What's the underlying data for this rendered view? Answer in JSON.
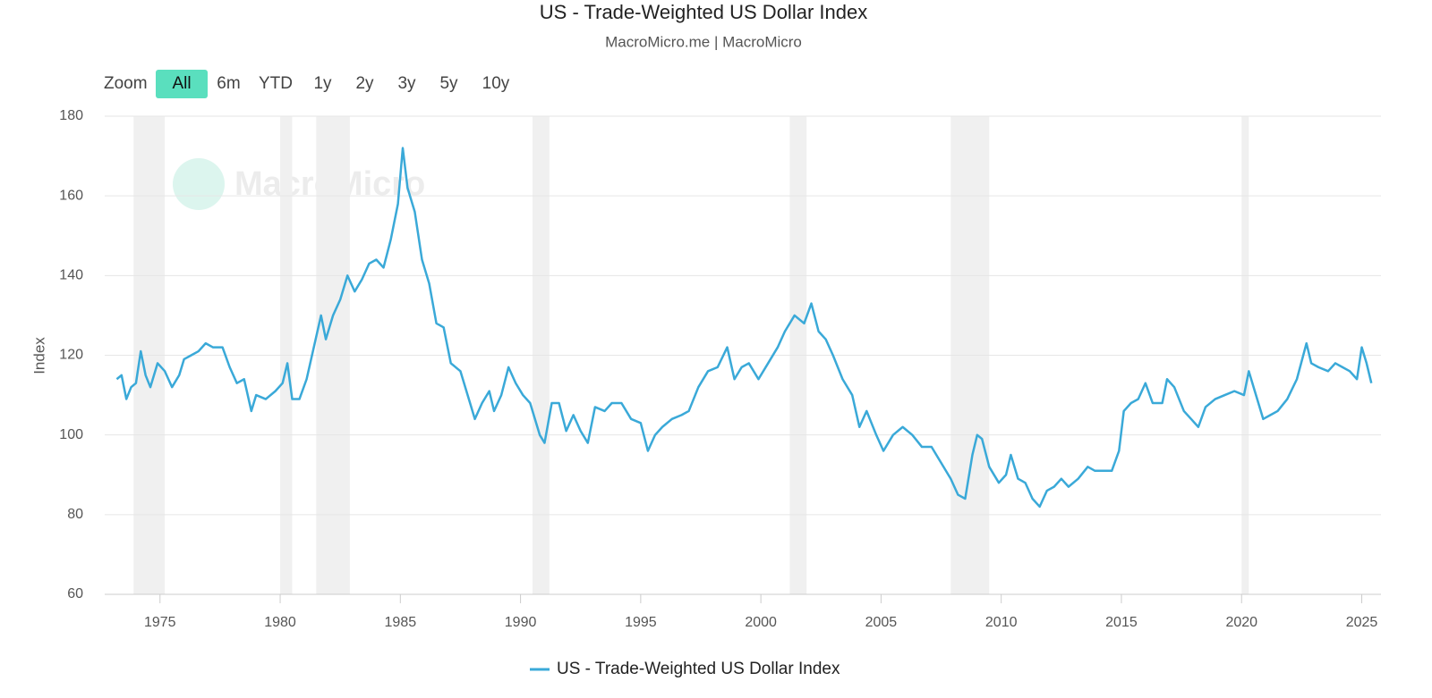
{
  "chart_data": {
    "type": "line",
    "title": "US - Trade-Weighted US Dollar Index",
    "subtitle": "MacroMicro.me | MacroMicro",
    "watermark": "MacroMicro",
    "zoom_label": "Zoom",
    "zoom_buttons": [
      "All",
      "6m",
      "YTD",
      "1y",
      "2y",
      "3y",
      "5y",
      "10y"
    ],
    "zoom_active": "All",
    "y_label": "Index",
    "xlim": [
      1972.7,
      2025.8
    ],
    "xticks": [
      1975,
      1980,
      1985,
      1990,
      1995,
      2000,
      2005,
      2010,
      2015,
      2020,
      2025
    ],
    "ylim": [
      60,
      180
    ],
    "yticks": [
      60,
      80,
      100,
      120,
      140,
      160,
      180
    ],
    "grid": true,
    "shaded_color": "#f0f0f0",
    "shaded_regions": [
      [
        1973.9,
        1975.2
      ],
      [
        1980.0,
        1980.5
      ],
      [
        1981.5,
        1982.9
      ],
      [
        1990.5,
        1991.2
      ],
      [
        2001.2,
        2001.9
      ],
      [
        2007.9,
        2009.5
      ],
      [
        2020.0,
        2020.3
      ]
    ],
    "series": [
      {
        "name": "US - Trade-Weighted US Dollar Index",
        "color": "#3aa9d8",
        "x": [
          1973.2,
          1973.4,
          1973.6,
          1973.8,
          1974.0,
          1974.2,
          1974.4,
          1974.6,
          1974.9,
          1975.2,
          1975.5,
          1975.8,
          1976.0,
          1976.3,
          1976.6,
          1976.9,
          1977.2,
          1977.6,
          1977.9,
          1978.2,
          1978.5,
          1978.8,
          1979.0,
          1979.4,
          1979.8,
          1980.1,
          1980.3,
          1980.5,
          1980.8,
          1981.1,
          1981.4,
          1981.7,
          1981.9,
          1982.2,
          1982.5,
          1982.8,
          1983.1,
          1983.4,
          1983.7,
          1984.0,
          1984.3,
          1984.6,
          1984.9,
          1985.1,
          1985.3,
          1985.6,
          1985.9,
          1986.2,
          1986.5,
          1986.8,
          1987.1,
          1987.5,
          1987.9,
          1988.1,
          1988.4,
          1988.7,
          1988.9,
          1989.2,
          1989.5,
          1989.8,
          1990.1,
          1990.4,
          1990.8,
          1991.0,
          1991.3,
          1991.6,
          1991.9,
          1992.2,
          1992.5,
          1992.8,
          1993.1,
          1993.5,
          1993.8,
          1994.2,
          1994.6,
          1995.0,
          1995.3,
          1995.6,
          1995.9,
          1996.3,
          1996.7,
          1997.0,
          1997.4,
          1997.8,
          1998.2,
          1998.6,
          1998.9,
          1999.2,
          1999.5,
          1999.9,
          2000.3,
          2000.7,
          2001.0,
          2001.4,
          2001.8,
          2002.1,
          2002.4,
          2002.7,
          2003.0,
          2003.4,
          2003.8,
          2004.1,
          2004.4,
          2004.8,
          2005.1,
          2005.5,
          2005.9,
          2006.3,
          2006.7,
          2007.1,
          2007.5,
          2007.9,
          2008.2,
          2008.5,
          2008.8,
          2009.0,
          2009.2,
          2009.5,
          2009.9,
          2010.2,
          2010.4,
          2010.7,
          2011.0,
          2011.3,
          2011.6,
          2011.9,
          2012.2,
          2012.5,
          2012.8,
          2013.2,
          2013.6,
          2013.9,
          2014.3,
          2014.6,
          2014.9,
          2015.1,
          2015.4,
          2015.7,
          2016.0,
          2016.3,
          2016.7,
          2016.9,
          2017.2,
          2017.6,
          2017.9,
          2018.2,
          2018.5,
          2018.9,
          2019.3,
          2019.7,
          2020.1,
          2020.3,
          2020.6,
          2020.9,
          2021.2,
          2021.5,
          2021.9,
          2022.3,
          2022.7,
          2022.9,
          2023.2,
          2023.6,
          2023.9,
          2024.2,
          2024.5,
          2024.8,
          2025.0,
          2025.2,
          2025.4
        ],
        "values": [
          114,
          115,
          109,
          112,
          113,
          121,
          115,
          112,
          118,
          116,
          112,
          115,
          119,
          120,
          121,
          123,
          122,
          122,
          117,
          113,
          114,
          106,
          110,
          109,
          111,
          113,
          118,
          109,
          109,
          114,
          122,
          130,
          124,
          130,
          134,
          140,
          136,
          139,
          143,
          144,
          142,
          149,
          158,
          172,
          162,
          156,
          144,
          138,
          128,
          127,
          118,
          116,
          108,
          104,
          108,
          111,
          106,
          110,
          117,
          113,
          110,
          108,
          100,
          98,
          108,
          108,
          101,
          105,
          101,
          98,
          107,
          106,
          108,
          108,
          104,
          103,
          96,
          100,
          102,
          104,
          105,
          106,
          112,
          116,
          117,
          122,
          114,
          117,
          118,
          114,
          118,
          122,
          126,
          130,
          128,
          133,
          126,
          124,
          120,
          114,
          110,
          102,
          106,
          100,
          96,
          100,
          102,
          100,
          97,
          97,
          93,
          89,
          85,
          84,
          95,
          100,
          99,
          92,
          88,
          90,
          95,
          89,
          88,
          84,
          82,
          86,
          87,
          89,
          87,
          89,
          92,
          91,
          91,
          91,
          96,
          106,
          108,
          109,
          113,
          108,
          108,
          114,
          112,
          106,
          104,
          102,
          107,
          109,
          110,
          111,
          110,
          116,
          110,
          104,
          105,
          106,
          109,
          114,
          123,
          118,
          117,
          116,
          118,
          117,
          116,
          114,
          122,
          118,
          113
        ]
      }
    ]
  }
}
